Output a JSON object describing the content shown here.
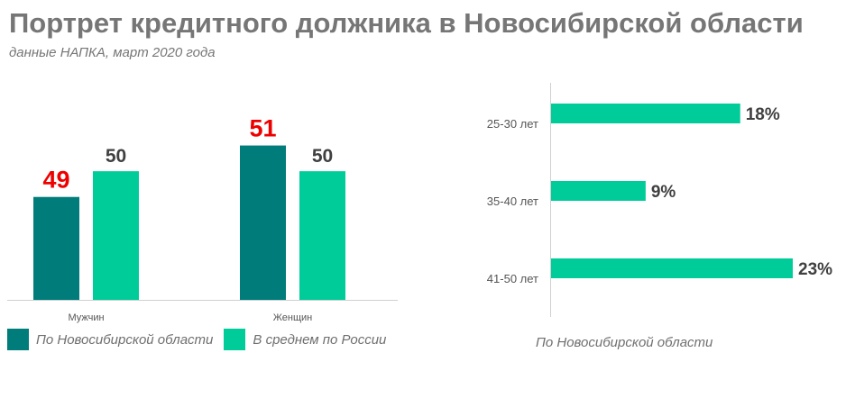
{
  "header": {
    "title": "Портрет кредитного должника в Новосибирской области",
    "subtitle": "данные НАПКА, март 2020 года"
  },
  "colors": {
    "region": "#007c7a",
    "russia": "#00cc99",
    "highlight": "#ee0000",
    "label": "#404040",
    "axis": "#d0d0d0",
    "tick": "#555555"
  },
  "chart_data": [
    {
      "type": "bar",
      "categories": [
        "Мужчин",
        "Женщин"
      ],
      "series": [
        {
          "name": "По Новосибирской области",
          "values": [
            49,
            51
          ]
        },
        {
          "name": "В среднем по России",
          "values": [
            50,
            50
          ]
        }
      ],
      "ylim": [
        45,
        52
      ],
      "grid": false,
      "legend": "bottom-left"
    },
    {
      "type": "bar",
      "orientation": "horizontal",
      "categories": [
        "25-30 лет",
        "35-40 лет",
        "41-50 лет"
      ],
      "values": [
        18,
        9,
        23
      ],
      "value_labels": [
        "18%",
        "9%",
        "23%"
      ],
      "xlim": [
        0,
        23
      ],
      "caption": "По Новосибирской области",
      "grid": false
    }
  ]
}
